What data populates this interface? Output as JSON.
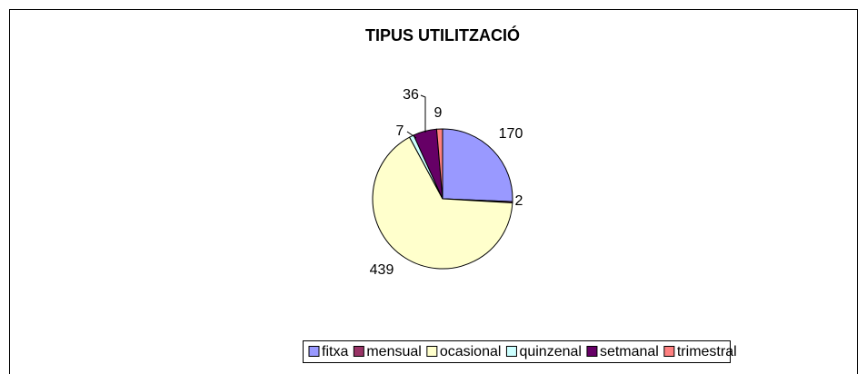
{
  "chart_data": {
    "type": "pie",
    "title": "TIPUS UTILITZACIÓ",
    "categories": [
      "fitxa",
      "mensual",
      "ocasional",
      "quinzenal",
      "setmanal",
      "trimestral"
    ],
    "values": [
      170,
      2,
      439,
      7,
      36,
      9
    ],
    "colors": [
      "#9999ff",
      "#993366",
      "#ffffcc",
      "#ccffff",
      "#660066",
      "#ff8080"
    ],
    "legend": "bottom"
  }
}
